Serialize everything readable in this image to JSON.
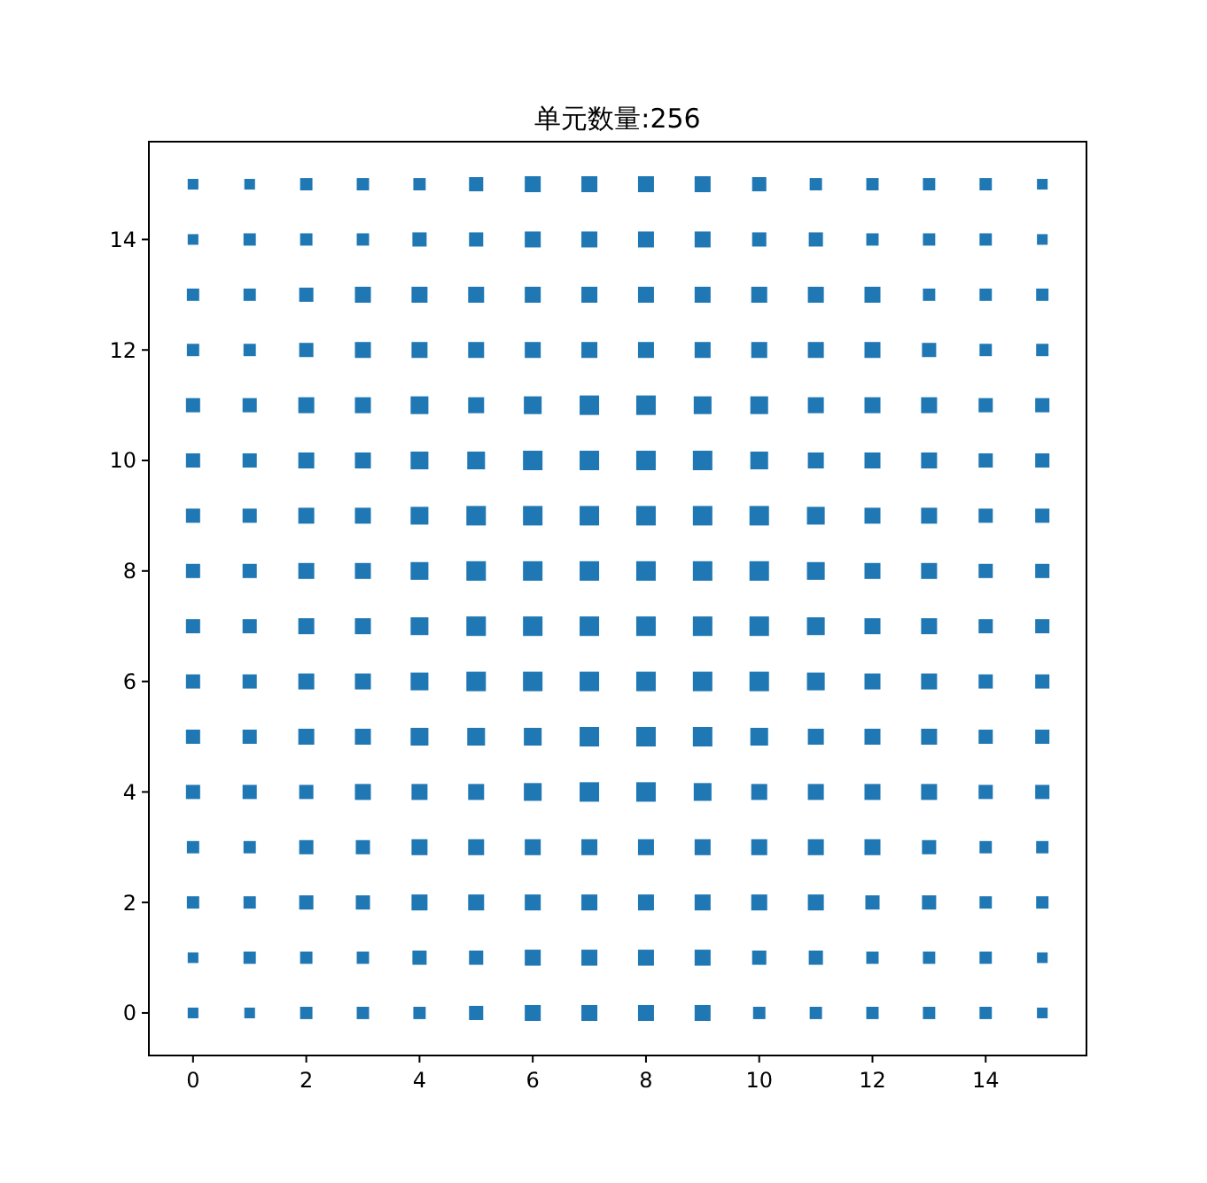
{
  "chart_data": {
    "type": "bubble",
    "title": "单元数量:256",
    "marker": "square",
    "grid": false,
    "xlim": [
      -0.78,
      15.78
    ],
    "ylim": [
      -0.77,
      15.77
    ],
    "xticks": [
      0,
      2,
      4,
      6,
      8,
      10,
      12,
      14
    ],
    "yticks": [
      0,
      2,
      4,
      6,
      8,
      10,
      12,
      14
    ],
    "series": [
      {
        "color": "#1f77b4",
        "x": [
          0,
          1,
          2,
          3,
          4,
          5,
          6,
          7,
          8,
          9,
          10,
          11,
          12,
          13,
          14,
          15
        ],
        "values": [
          15,
          15,
          15,
          15,
          15,
          15,
          15,
          15,
          15,
          15,
          15,
          15,
          15,
          15,
          15,
          15
        ],
        "sizes": [
          0.3,
          0.3,
          0.4,
          0.4,
          0.4,
          0.53,
          0.67,
          0.67,
          0.67,
          0.67,
          0.53,
          0.4,
          0.4,
          0.4,
          0.4,
          0.3
        ]
      },
      {
        "color": "#1f77b4",
        "x": [
          0,
          1,
          2,
          3,
          4,
          5,
          6,
          7,
          8,
          9,
          10,
          11,
          12,
          13,
          14,
          15
        ],
        "values": [
          14,
          14,
          14,
          14,
          14,
          14,
          14,
          14,
          14,
          14,
          14,
          14,
          14,
          14,
          14,
          14
        ],
        "sizes": [
          0.3,
          0.4,
          0.4,
          0.4,
          0.53,
          0.53,
          0.67,
          0.67,
          0.67,
          0.67,
          0.53,
          0.53,
          0.4,
          0.4,
          0.4,
          0.3
        ]
      },
      {
        "color": "#1f77b4",
        "x": [
          0,
          1,
          2,
          3,
          4,
          5,
          6,
          7,
          8,
          9,
          10,
          11,
          12,
          13,
          14,
          15
        ],
        "values": [
          13,
          13,
          13,
          13,
          13,
          13,
          13,
          13,
          13,
          13,
          13,
          13,
          13,
          13,
          13,
          13
        ],
        "sizes": [
          0.4,
          0.4,
          0.53,
          0.67,
          0.67,
          0.67,
          0.67,
          0.67,
          0.67,
          0.67,
          0.67,
          0.67,
          0.67,
          0.4,
          0.4,
          0.4
        ]
      },
      {
        "color": "#1f77b4",
        "x": [
          0,
          1,
          2,
          3,
          4,
          5,
          6,
          7,
          8,
          9,
          10,
          11,
          12,
          13,
          14,
          15
        ],
        "values": [
          12,
          12,
          12,
          12,
          12,
          12,
          12,
          12,
          12,
          12,
          12,
          12,
          12,
          12,
          12,
          12
        ],
        "sizes": [
          0.4,
          0.4,
          0.53,
          0.67,
          0.67,
          0.67,
          0.67,
          0.67,
          0.67,
          0.67,
          0.67,
          0.67,
          0.67,
          0.53,
          0.4,
          0.4
        ]
      },
      {
        "color": "#1f77b4",
        "x": [
          0,
          1,
          2,
          3,
          4,
          5,
          6,
          7,
          8,
          9,
          10,
          11,
          12,
          13,
          14,
          15
        ],
        "values": [
          11,
          11,
          11,
          11,
          11,
          11,
          11,
          11,
          11,
          11,
          11,
          11,
          11,
          11,
          11,
          11
        ],
        "sizes": [
          0.53,
          0.53,
          0.67,
          0.67,
          0.83,
          0.67,
          0.83,
          1,
          1,
          0.83,
          0.83,
          0.67,
          0.67,
          0.67,
          0.53,
          0.53
        ]
      },
      {
        "color": "#1f77b4",
        "x": [
          0,
          1,
          2,
          3,
          4,
          5,
          6,
          7,
          8,
          9,
          10,
          11,
          12,
          13,
          14,
          15
        ],
        "values": [
          10,
          10,
          10,
          10,
          10,
          10,
          10,
          10,
          10,
          10,
          10,
          10,
          10,
          10,
          10,
          10
        ],
        "sizes": [
          0.53,
          0.53,
          0.67,
          0.67,
          0.83,
          0.83,
          1,
          1,
          1,
          1,
          0.83,
          0.67,
          0.67,
          0.67,
          0.53,
          0.53
        ]
      },
      {
        "color": "#1f77b4",
        "x": [
          0,
          1,
          2,
          3,
          4,
          5,
          6,
          7,
          8,
          9,
          10,
          11,
          12,
          13,
          14,
          15
        ],
        "values": [
          9,
          9,
          9,
          9,
          9,
          9,
          9,
          9,
          9,
          9,
          9,
          9,
          9,
          9,
          9,
          9
        ],
        "sizes": [
          0.53,
          0.53,
          0.67,
          0.67,
          0.83,
          1,
          1,
          1,
          1,
          1,
          1,
          0.83,
          0.67,
          0.67,
          0.53,
          0.53
        ]
      },
      {
        "color": "#1f77b4",
        "x": [
          0,
          1,
          2,
          3,
          4,
          5,
          6,
          7,
          8,
          9,
          10,
          11,
          12,
          13,
          14,
          15
        ],
        "values": [
          8,
          8,
          8,
          8,
          8,
          8,
          8,
          8,
          8,
          8,
          8,
          8,
          8,
          8,
          8,
          8
        ],
        "sizes": [
          0.53,
          0.53,
          0.67,
          0.67,
          0.83,
          1,
          1,
          1,
          1,
          1,
          1,
          0.83,
          0.67,
          0.67,
          0.53,
          0.53
        ]
      },
      {
        "color": "#1f77b4",
        "x": [
          0,
          1,
          2,
          3,
          4,
          5,
          6,
          7,
          8,
          9,
          10,
          11,
          12,
          13,
          14,
          15
        ],
        "values": [
          7,
          7,
          7,
          7,
          7,
          7,
          7,
          7,
          7,
          7,
          7,
          7,
          7,
          7,
          7,
          7
        ],
        "sizes": [
          0.53,
          0.53,
          0.67,
          0.67,
          0.83,
          1,
          1,
          1,
          1,
          1,
          1,
          0.83,
          0.67,
          0.67,
          0.53,
          0.53
        ]
      },
      {
        "color": "#1f77b4",
        "x": [
          0,
          1,
          2,
          3,
          4,
          5,
          6,
          7,
          8,
          9,
          10,
          11,
          12,
          13,
          14,
          15
        ],
        "values": [
          6,
          6,
          6,
          6,
          6,
          6,
          6,
          6,
          6,
          6,
          6,
          6,
          6,
          6,
          6,
          6
        ],
        "sizes": [
          0.53,
          0.53,
          0.67,
          0.67,
          0.83,
          1,
          1,
          1,
          1,
          1,
          1,
          0.83,
          0.67,
          0.67,
          0.53,
          0.53
        ]
      },
      {
        "color": "#1f77b4",
        "x": [
          0,
          1,
          2,
          3,
          4,
          5,
          6,
          7,
          8,
          9,
          10,
          11,
          12,
          13,
          14,
          15
        ],
        "values": [
          5,
          5,
          5,
          5,
          5,
          5,
          5,
          5,
          5,
          5,
          5,
          5,
          5,
          5,
          5,
          5
        ],
        "sizes": [
          0.53,
          0.53,
          0.67,
          0.67,
          0.83,
          0.83,
          0.83,
          1,
          1,
          1,
          0.83,
          0.67,
          0.67,
          0.67,
          0.53,
          0.53
        ]
      },
      {
        "color": "#1f77b4",
        "x": [
          0,
          1,
          2,
          3,
          4,
          5,
          6,
          7,
          8,
          9,
          10,
          11,
          12,
          13,
          14,
          15
        ],
        "values": [
          4,
          4,
          4,
          4,
          4,
          4,
          4,
          4,
          4,
          4,
          4,
          4,
          4,
          4,
          4,
          4
        ],
        "sizes": [
          0.53,
          0.53,
          0.53,
          0.67,
          0.67,
          0.67,
          0.83,
          1,
          1,
          0.83,
          0.67,
          0.67,
          0.67,
          0.67,
          0.53,
          0.53
        ]
      },
      {
        "color": "#1f77b4",
        "x": [
          0,
          1,
          2,
          3,
          4,
          5,
          6,
          7,
          8,
          9,
          10,
          11,
          12,
          13,
          14,
          15
        ],
        "values": [
          3,
          3,
          3,
          3,
          3,
          3,
          3,
          3,
          3,
          3,
          3,
          3,
          3,
          3,
          3,
          3
        ],
        "sizes": [
          0.4,
          0.4,
          0.53,
          0.53,
          0.67,
          0.67,
          0.67,
          0.67,
          0.67,
          0.67,
          0.67,
          0.67,
          0.67,
          0.53,
          0.4,
          0.4
        ]
      },
      {
        "color": "#1f77b4",
        "x": [
          0,
          1,
          2,
          3,
          4,
          5,
          6,
          7,
          8,
          9,
          10,
          11,
          12,
          13,
          14,
          15
        ],
        "values": [
          2,
          2,
          2,
          2,
          2,
          2,
          2,
          2,
          2,
          2,
          2,
          2,
          2,
          2,
          2,
          2
        ],
        "sizes": [
          0.4,
          0.4,
          0.53,
          0.53,
          0.67,
          0.67,
          0.67,
          0.67,
          0.67,
          0.67,
          0.67,
          0.67,
          0.53,
          0.53,
          0.4,
          0.4
        ]
      },
      {
        "color": "#1f77b4",
        "x": [
          0,
          1,
          2,
          3,
          4,
          5,
          6,
          7,
          8,
          9,
          10,
          11,
          12,
          13,
          14,
          15
        ],
        "values": [
          1,
          1,
          1,
          1,
          1,
          1,
          1,
          1,
          1,
          1,
          1,
          1,
          1,
          1,
          1,
          1
        ],
        "sizes": [
          0.3,
          0.4,
          0.4,
          0.4,
          0.53,
          0.53,
          0.67,
          0.67,
          0.67,
          0.67,
          0.53,
          0.53,
          0.4,
          0.4,
          0.4,
          0.3
        ]
      },
      {
        "color": "#1f77b4",
        "x": [
          0,
          1,
          2,
          3,
          4,
          5,
          6,
          7,
          8,
          9,
          10,
          11,
          12,
          13,
          14,
          15
        ],
        "values": [
          0,
          0,
          0,
          0,
          0,
          0,
          0,
          0,
          0,
          0,
          0,
          0,
          0,
          0,
          0,
          0
        ],
        "sizes": [
          0.3,
          0.3,
          0.4,
          0.4,
          0.4,
          0.53,
          0.67,
          0.67,
          0.67,
          0.67,
          0.4,
          0.4,
          0.4,
          0.4,
          0.4,
          0.3
        ]
      }
    ]
  }
}
